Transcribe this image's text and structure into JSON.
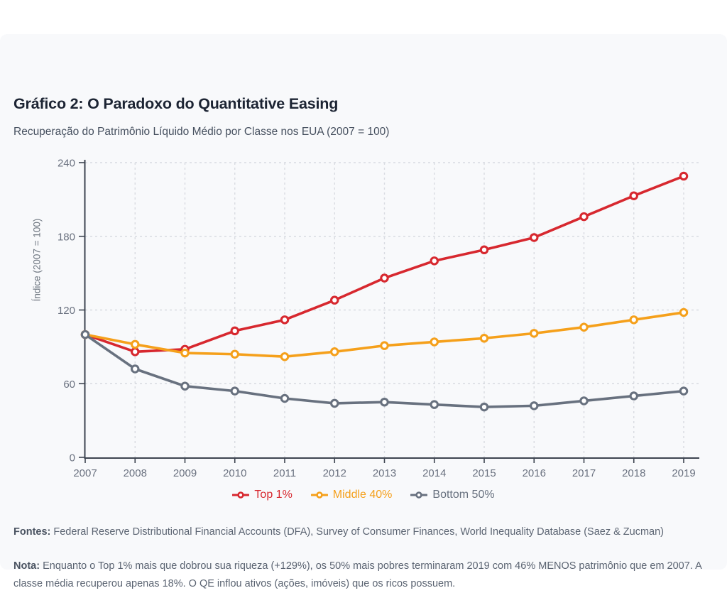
{
  "chart_data": {
    "type": "line",
    "title": "Gráfico 2: O Paradoxo do Quantitative Easing",
    "subtitle": "Recuperação do Patrimônio Líquido Médio por Classe nos EUA (2007 = 100)",
    "categories": [
      "2007",
      "2008",
      "2009",
      "2010",
      "2011",
      "2012",
      "2013",
      "2014",
      "2015",
      "2016",
      "2017",
      "2018",
      "2019"
    ],
    "series": [
      {
        "name": "Top 1%",
        "color": "#d7282f",
        "values": [
          100,
          86,
          88,
          103,
          112,
          128,
          146,
          160,
          169,
          179,
          196,
          213,
          229
        ]
      },
      {
        "name": "Middle 40%",
        "color": "#f5a01b",
        "values": [
          100,
          92,
          85,
          84,
          82,
          86,
          91,
          94,
          97,
          101,
          106,
          112,
          118
        ]
      },
      {
        "name": "Bottom 50%",
        "color": "#68717f",
        "values": [
          100,
          72,
          58,
          54,
          48,
          44,
          45,
          43,
          41,
          42,
          46,
          50,
          54
        ]
      }
    ],
    "ylabel": "Índice (2007 = 100)",
    "xlabel": "",
    "ylim": [
      0,
      240
    ],
    "yticks": [
      0,
      60,
      120,
      180,
      240
    ],
    "grid": true,
    "legend_position": "bottom",
    "marker": "open-circle"
  },
  "footer": {
    "sources_label": "Fontes:",
    "sources_text": " Federal Reserve Distributional Financial Accounts (DFA), Survey of Consumer Finances, World Inequality Database (Saez & Zucman)",
    "note_label": "Nota:",
    "note_text": " Enquanto o Top 1% mais que dobrou sua riqueza (+129%), os 50% mais pobres terminaram 2019 com 46% MENOS patrimônio que em 2007. A classe média recuperou apenas 18%. O QE inflou ativos (ações, imóveis) que os ricos possuem."
  },
  "theme": {
    "card_bg": "#f8f9fb",
    "grid_color": "#d8dbe1",
    "axis_color": "#3d4450",
    "tick_text_color": "#6b7280",
    "title_color": "#1c2433",
    "subtitle_color": "#46505f",
    "marker_fill": "#ffffff"
  }
}
